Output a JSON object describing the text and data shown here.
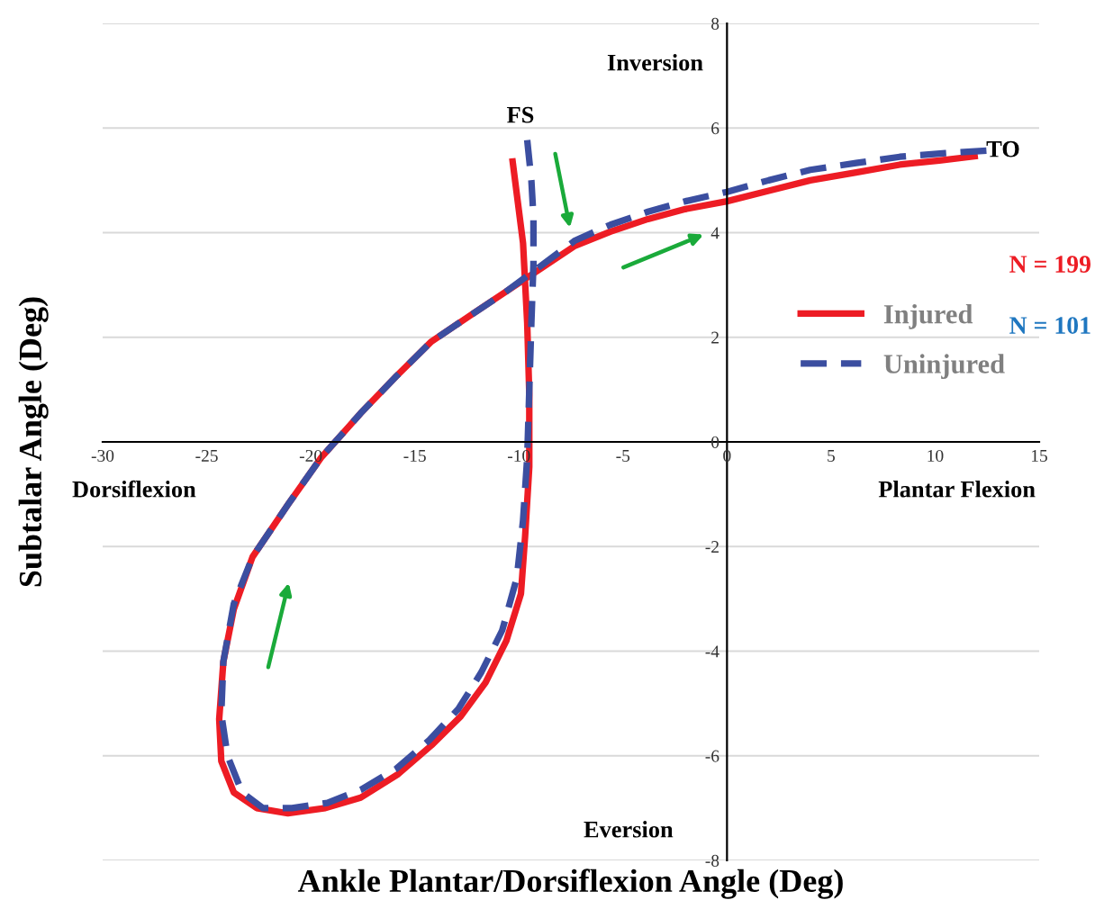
{
  "chart_data": {
    "type": "line",
    "xlabel": "Ankle Plantar/Dorsiflexion Angle (Deg)",
    "ylabel": "Subtalar Angle (Deg)",
    "xlim": [
      -30,
      15
    ],
    "xticks": [
      -30,
      -25,
      -20,
      -15,
      -10,
      -5,
      0,
      5,
      10,
      15
    ],
    "ylim": [
      -8,
      8
    ],
    "yticks": [
      -8,
      -6,
      -4,
      -2,
      0,
      2,
      4,
      6,
      8
    ],
    "grid": "y",
    "legend": "right",
    "marker": "none",
    "series": [
      {
        "name": "Injured",
        "color": "#ed1c24",
        "line_style": "solid",
        "x": [
          -10.3,
          -9.8,
          -9.6,
          -9.5,
          -9.5,
          -9.7,
          -9.9,
          -10.6,
          -11.6,
          -12.8,
          -14.2,
          -15.8,
          -17.6,
          -19.3,
          -21.1,
          -22.6,
          -23.7,
          -24.3,
          -24.4,
          -24.2,
          -23.7,
          -22.8,
          -21.1,
          -19.5,
          -17.6,
          -15.9,
          -14.2,
          -12.4,
          -10.7,
          -9.0,
          -7.3,
          -5.6,
          -3.8,
          -2.0,
          0,
          2.0,
          4.0,
          6.2,
          8.3,
          10.2,
          11.9
        ],
        "values": [
          5.36,
          3.8,
          2.27,
          0.9,
          -0.48,
          -1.8,
          -2.9,
          -3.8,
          -4.6,
          -5.25,
          -5.8,
          -6.35,
          -6.8,
          -7.0,
          -7.1,
          -7.0,
          -6.7,
          -6.1,
          -5.3,
          -4.2,
          -3.2,
          -2.2,
          -1.2,
          -0.3,
          0.55,
          1.25,
          1.92,
          2.4,
          2.85,
          3.3,
          3.75,
          4.02,
          4.26,
          4.45,
          4.6,
          4.8,
          5.0,
          5.15,
          5.3,
          5.38,
          5.46
        ]
      },
      {
        "name": "Uninjured",
        "color": "#3b4ea0",
        "line_style": "dashed",
        "x": [
          -9.6,
          -9.4,
          -9.3,
          -9.3,
          -9.4,
          -9.5,
          -9.6,
          -9.8,
          -10.1,
          -10.8,
          -11.8,
          -12.9,
          -14.3,
          -15.9,
          -17.6,
          -19.2,
          -20.9,
          -22.3,
          -23.3,
          -24.0,
          -24.3,
          -24.2,
          -23.7,
          -22.8,
          -21.1,
          -19.5,
          -17.6,
          -15.9,
          -14.2,
          -12.4,
          -10.7,
          -9.0,
          -7.3,
          -5.6,
          -3.8,
          -2.0,
          0,
          2.0,
          4.0,
          6.2,
          8.3,
          10.5,
          12.5
        ],
        "values": [
          5.77,
          5.0,
          4.3,
          3.4,
          2.27,
          1.0,
          -0.3,
          -1.5,
          -2.6,
          -3.6,
          -4.4,
          -5.1,
          -5.7,
          -6.25,
          -6.65,
          -6.9,
          -7.0,
          -7.0,
          -6.7,
          -6.0,
          -5.2,
          -4.2,
          -3.1,
          -2.2,
          -1.2,
          -0.3,
          0.55,
          1.25,
          1.92,
          2.4,
          2.85,
          3.35,
          3.85,
          4.15,
          4.4,
          4.6,
          4.78,
          5.0,
          5.2,
          5.33,
          5.45,
          5.52,
          5.57
        ]
      }
    ],
    "annotations": [
      "Inversion",
      "Eversion",
      "Dorsiflexion",
      "Plantar Flexion",
      "FS",
      "TO",
      "N = 199",
      "N = 101"
    ]
  }
}
